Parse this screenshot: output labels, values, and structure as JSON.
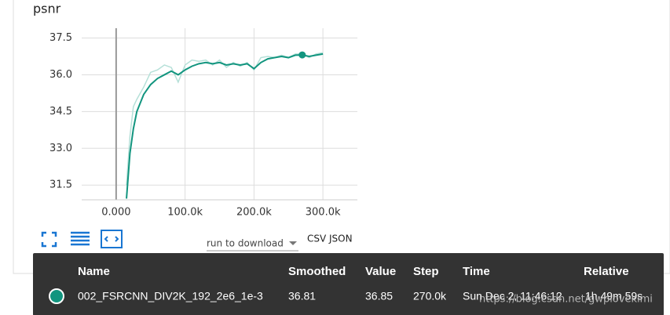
{
  "chart_data": {
    "type": "line",
    "title": "psnr",
    "x": [
      15000,
      20000,
      25000,
      30000,
      40000,
      50000,
      60000,
      70000,
      80000,
      90000,
      100000,
      110000,
      120000,
      130000,
      140000,
      150000,
      160000,
      170000,
      180000,
      190000,
      200000,
      210000,
      220000,
      230000,
      240000,
      250000,
      260000,
      270000,
      280000,
      290000,
      300000
    ],
    "series": [
      {
        "color": "#12957f",
        "values": [
          30.95,
          32.8,
          33.8,
          34.5,
          35.2,
          35.6,
          35.85,
          36.0,
          36.15,
          36.0,
          36.2,
          36.35,
          36.45,
          36.5,
          36.45,
          36.5,
          36.4,
          36.45,
          36.4,
          36.45,
          36.25,
          36.5,
          36.65,
          36.7,
          36.75,
          36.7,
          36.8,
          36.81,
          36.75,
          36.8,
          36.85
        ]
      },
      {
        "color": "#b5e0d8",
        "values": [
          31.5,
          33.5,
          34.7,
          35.0,
          35.5,
          36.1,
          36.2,
          36.4,
          36.3,
          35.7,
          36.4,
          36.6,
          36.55,
          36.6,
          36.4,
          36.6,
          36.3,
          36.5,
          36.35,
          36.5,
          36.2,
          36.7,
          36.75,
          36.7,
          36.8,
          36.7,
          36.85,
          36.85,
          36.7,
          36.85,
          36.9
        ]
      }
    ],
    "xlim": [
      -50000,
      350000
    ],
    "xticks": [
      {
        "value": 0,
        "label": "0.000"
      },
      {
        "value": 100000,
        "label": "100.0k"
      },
      {
        "value": 200000,
        "label": "200.0k"
      },
      {
        "value": 300000,
        "label": "300.0k"
      }
    ],
    "ylim": [
      30.9,
      37.9
    ],
    "yticks": [
      {
        "value": 31.5,
        "label": "31.5"
      },
      {
        "value": 33,
        "label": "33.0"
      },
      {
        "value": 34.5,
        "label": "34.5"
      },
      {
        "value": 36,
        "label": "36.0"
      },
      {
        "value": 37.5,
        "label": "37.5"
      }
    ],
    "grid": true,
    "highlight_index": 27
  },
  "controls": {
    "download": "run to download",
    "csv": "CSV",
    "json": "JSON"
  },
  "tooltip": {
    "headers": [
      "Name",
      "Smoothed",
      "Value",
      "Step",
      "Time",
      "Relative"
    ],
    "row": [
      "002_FSRCNN_DIV2K_192_2e6_1e-3",
      "36.81",
      "36.85",
      "270.0k",
      "Sun Dec 2, 11:46:12",
      "1h 49m 59s"
    ]
  },
  "watermark": "https://blog.csdn.net/gwplovekimi"
}
